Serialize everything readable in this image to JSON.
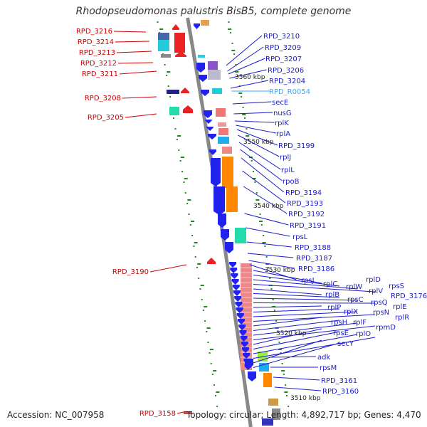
{
  "title": "Rhodopseudomonas palustris BisB5, complete genome",
  "footer": {
    "accession": "Accession: NC_007958",
    "summary": "Topology: circular; Length: 4,892,717 bp; Genes: 4,470"
  },
  "colors": {
    "left_label": "#cc0000",
    "right_label": "#1a1acc",
    "rna_label": "#33aaff",
    "backbone": "#888888",
    "tick": "#1a8c1a"
  },
  "scale_labels": [
    "3560 kbp",
    "3550 kbp",
    "3540 kbp",
    "3530 kbp",
    "3520 kbp",
    "3510 kbp"
  ],
  "left_genes": [
    "RPD_3216",
    "RPD_3214",
    "RPD_3213",
    "RPD_3212",
    "RPD_3211",
    "RPD_3208",
    "RPD_3205",
    "RPD_3190",
    "RPD_3158"
  ],
  "right_genes": [
    "RPD_3210",
    "RPD_3209",
    "RPD_3207",
    "RPD_3206",
    "RPD_3204",
    "RPD_R0054",
    "secE",
    "nusG",
    "rplK",
    "rplA",
    "RPD_3199",
    "rplJ",
    "rplL",
    "rpoB",
    "RPD_3194",
    "RPD_3193",
    "RPD_3192",
    "RPD_3191",
    "rpsL",
    "RPD_3188",
    "RPD_3187",
    "RPD_3186",
    "rpsJ",
    "rplC",
    "rplD",
    "rpsS",
    "rplW",
    "rplB",
    "rplV",
    "RPD_3176",
    "rpsC",
    "rplP",
    "rpsQ",
    "rplE",
    "rplX",
    "rpsN",
    "rplR",
    "rpsH",
    "rplF",
    "rpmD",
    "rpsE",
    "rplO",
    "secY",
    "adk",
    "rpsM",
    "RPD_3161",
    "RPD_3160"
  ]
}
